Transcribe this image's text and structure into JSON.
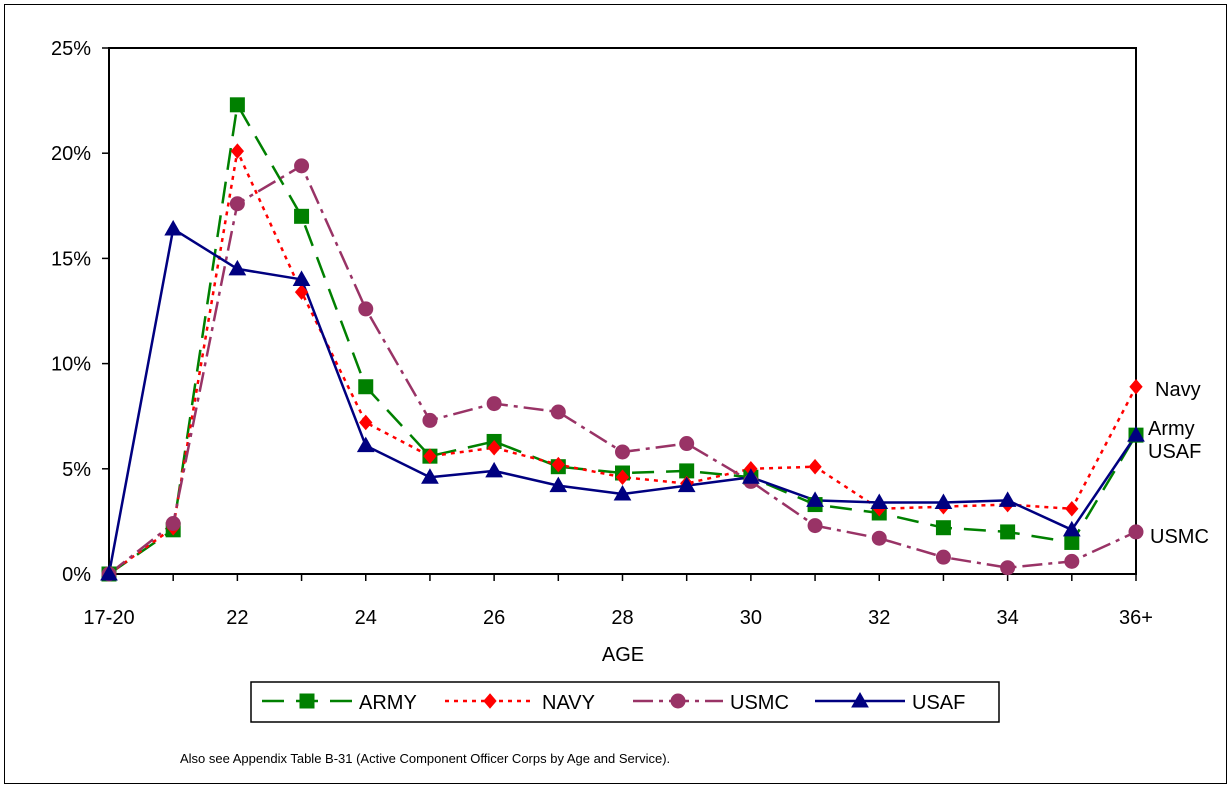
{
  "chart_data": {
    "type": "line",
    "categories": [
      "17-20",
      "21",
      "22",
      "23",
      "24",
      "25",
      "26",
      "27",
      "28",
      "29",
      "30",
      "31",
      "32",
      "33",
      "34",
      "35",
      "36+"
    ],
    "tick_labels": [
      "17-20",
      "",
      "22",
      "",
      "24",
      "",
      "26",
      "",
      "28",
      "",
      "30",
      "",
      "32",
      "",
      "34",
      "",
      "36+"
    ],
    "y_ticks": [
      "0%",
      "5%",
      "10%",
      "15%",
      "20%",
      "25%"
    ],
    "ylim": [
      0,
      25
    ],
    "xlabel": "AGE",
    "ylabel": "",
    "grid": false,
    "legend_position": "bottom",
    "series": [
      {
        "name": "ARMY",
        "end_label": "Army",
        "color": "#008000",
        "marker": "square",
        "dash": "22,12",
        "values": [
          0.0,
          2.1,
          22.3,
          17.0,
          8.9,
          5.6,
          6.3,
          5.1,
          4.8,
          4.9,
          4.6,
          3.3,
          2.9,
          2.2,
          2.0,
          1.5,
          6.6
        ]
      },
      {
        "name": "NAVY",
        "end_label": "Navy",
        "color": "#ff0000",
        "marker": "diamond",
        "dash": "4,5",
        "values": [
          0.0,
          2.2,
          20.1,
          13.4,
          7.2,
          5.6,
          6.0,
          5.2,
          4.6,
          4.3,
          5.0,
          5.1,
          3.1,
          3.2,
          3.3,
          3.1,
          8.9
        ]
      },
      {
        "name": "USMC",
        "end_label": "USMC",
        "color": "#993366",
        "marker": "circle",
        "dash": "20,6,4,6",
        "values": [
          0.0,
          2.4,
          17.6,
          19.4,
          12.6,
          7.3,
          8.1,
          7.7,
          5.8,
          6.2,
          4.4,
          2.3,
          1.7,
          0.8,
          0.3,
          0.6,
          2.0
        ]
      },
      {
        "name": "USAF",
        "end_label": "USAF",
        "color": "#000080",
        "marker": "triangle",
        "dash": "",
        "values": [
          0.0,
          16.4,
          14.5,
          14.0,
          6.1,
          4.6,
          4.9,
          4.2,
          3.8,
          4.2,
          4.6,
          3.5,
          3.4,
          3.4,
          3.5,
          2.1,
          6.6
        ]
      }
    ]
  },
  "footnote": "Also see Appendix Table B-31 (Active Component Officer Corps by Age and Service)."
}
